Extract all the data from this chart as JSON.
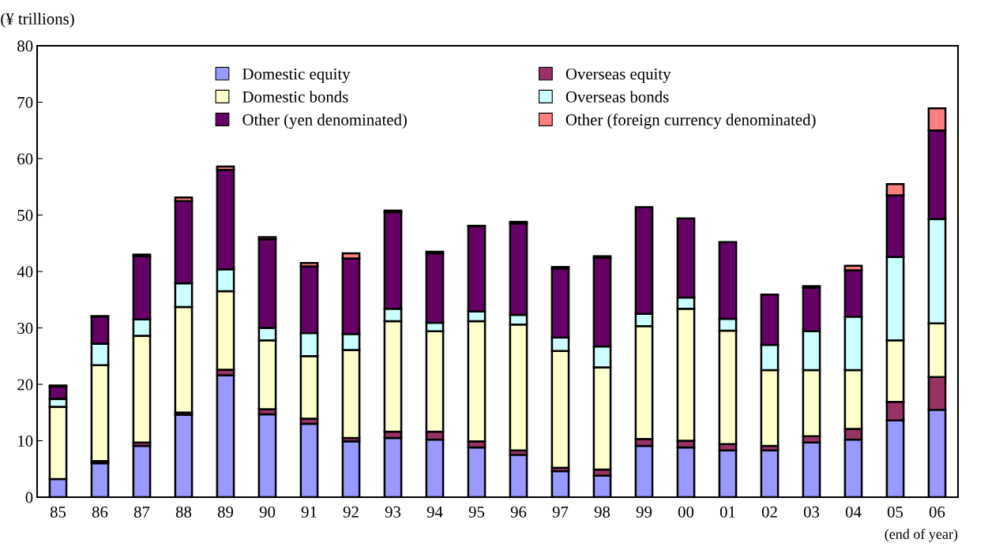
{
  "chart_data": {
    "type": "bar",
    "stacked": true,
    "ylabel": "(¥ trillions)",
    "categories": [
      "85",
      "86",
      "87",
      "88",
      "89",
      "90",
      "91",
      "92",
      "93",
      "94",
      "95",
      "96",
      "97",
      "98",
      "99",
      "00",
      "01",
      "02",
      "03",
      "04",
      "05",
      "06"
    ],
    "series": [
      {
        "name": "Domestic equity",
        "color": "#9999ff",
        "values": [
          3.2,
          6.0,
          9.1,
          14.6,
          21.6,
          14.7,
          13.0,
          9.9,
          10.5,
          10.2,
          8.8,
          7.5,
          4.6,
          3.8,
          9.1,
          8.8,
          8.3,
          8.3,
          9.7,
          10.2,
          13.6,
          15.5
        ]
      },
      {
        "name": "Overseas equity",
        "color": "#993366",
        "values": [
          null,
          0.4,
          0.6,
          0.4,
          1.0,
          0.9,
          0.9,
          0.6,
          1.1,
          1.4,
          1.1,
          0.8,
          0.6,
          1.1,
          1.2,
          1.2,
          1.1,
          0.8,
          1.1,
          1.9,
          3.3,
          5.8
        ]
      },
      {
        "name": "Domestic bonds",
        "color": "#ffffcc",
        "values": [
          12.8,
          17.0,
          18.9,
          18.7,
          13.9,
          12.2,
          11.1,
          15.6,
          19.6,
          17.8,
          21.3,
          22.3,
          20.7,
          18.1,
          20.0,
          23.4,
          20.1,
          13.4,
          11.7,
          10.4,
          10.9,
          9.5
        ]
      },
      {
        "name": "Overseas bonds",
        "color": "#ccffff",
        "values": [
          1.4,
          3.8,
          2.9,
          4.2,
          3.9,
          2.2,
          4.1,
          2.8,
          2.2,
          1.5,
          1.7,
          1.7,
          2.4,
          3.7,
          2.2,
          2.0,
          2.1,
          4.5,
          6.9,
          9.5,
          14.8,
          18.5
        ]
      },
      {
        "name": "Other (yen denominated)",
        "color": "#660066",
        "values": [
          2.2,
          4.8,
          11.2,
          14.6,
          17.6,
          15.7,
          11.8,
          13.4,
          17.1,
          12.3,
          15.1,
          16.2,
          12.2,
          15.7,
          18.9,
          14.0,
          13.6,
          8.9,
          7.7,
          8.2,
          10.9,
          15.7
        ]
      },
      {
        "name": "Other (foreign currency denominated)",
        "color": "#ff8080",
        "values": [
          0.2,
          0.1,
          0.3,
          0.6,
          0.6,
          0.4,
          0.6,
          0.9,
          0.3,
          0.3,
          0.1,
          0.3,
          0.3,
          0.3,
          null,
          null,
          null,
          null,
          0.3,
          0.8,
          2.0,
          3.9
        ]
      }
    ],
    "ylim": [
      0,
      80
    ],
    "yticks": [
      0,
      10,
      20,
      30,
      40,
      50,
      60,
      70,
      80
    ],
    "grid": false,
    "legend": "top",
    "annotations": [
      "(end of year)"
    ]
  }
}
